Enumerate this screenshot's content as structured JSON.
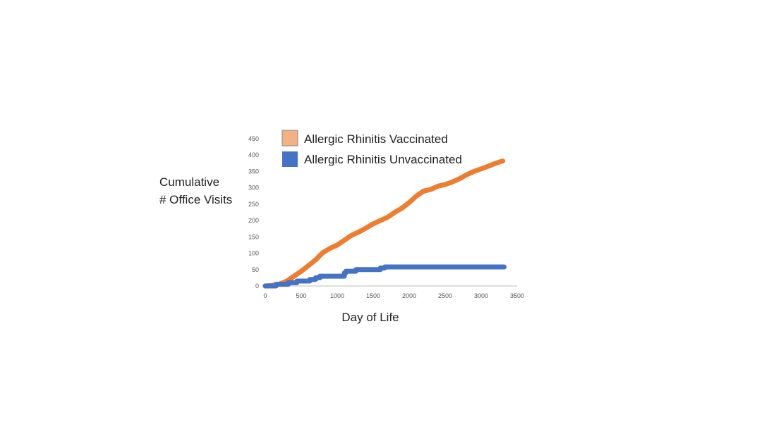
{
  "chart_data": {
    "type": "line",
    "title": "",
    "ylabel_lines": [
      "Cumulative",
      "# Office Visits"
    ],
    "xlabel": "Day of Life",
    "xlim": [
      0,
      3500
    ],
    "ylim": [
      0,
      450
    ],
    "x_ticks": [
      0,
      500,
      1000,
      1500,
      2000,
      2500,
      3000,
      3500
    ],
    "y_ticks": [
      0,
      50,
      100,
      150,
      200,
      250,
      300,
      350,
      400,
      450
    ],
    "grid": false,
    "legend_position": "top",
    "series": [
      {
        "name": "Allergic Rhinitis Vaccinated",
        "legend_swatch_color": "#f4b183",
        "line_color": "#ed7d31",
        "step": false,
        "x": [
          0,
          100,
          200,
          300,
          400,
          500,
          600,
          700,
          800,
          900,
          1000,
          1100,
          1200,
          1300,
          1400,
          1500,
          1600,
          1700,
          1800,
          1900,
          2000,
          2100,
          2200,
          2300,
          2400,
          2500,
          2600,
          2700,
          2800,
          2900,
          3000,
          3100,
          3200,
          3300
        ],
        "y": [
          0,
          2,
          6,
          15,
          30,
          45,
          62,
          80,
          102,
          115,
          125,
          140,
          155,
          165,
          177,
          190,
          200,
          210,
          225,
          238,
          255,
          275,
          290,
          295,
          305,
          310,
          318,
          328,
          340,
          350,
          358,
          366,
          375,
          382
        ]
      },
      {
        "name": "Allergic Rhinitis Unvaccinated",
        "legend_swatch_color": "#4472c4",
        "line_color": "#4472c4",
        "step": true,
        "x": [
          0,
          150,
          320,
          440,
          620,
          700,
          760,
          1100,
          1120,
          1260,
          1600,
          1660,
          3320
        ],
        "y": [
          0,
          5,
          10,
          15,
          20,
          25,
          30,
          40,
          45,
          50,
          55,
          58,
          58
        ]
      }
    ]
  }
}
